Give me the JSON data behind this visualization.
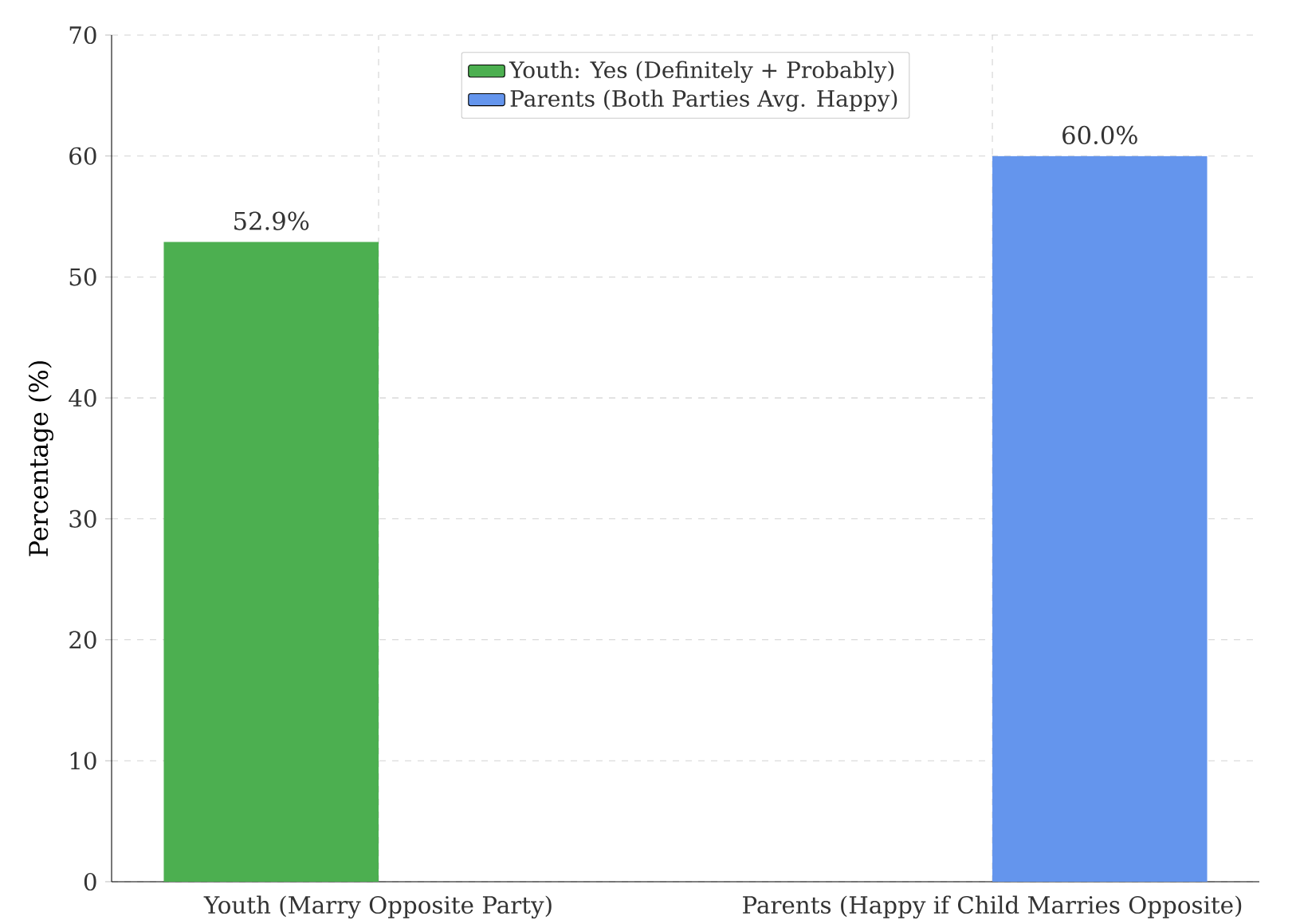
{
  "chart_data": {
    "type": "bar",
    "ylabel": "Percentage (%)",
    "categories": [
      "Youth (Marry Opposite Party)",
      "Parents (Happy if Child Marries Opposite)"
    ],
    "series": [
      {
        "name": "Youth: Yes (Definitely + Probably)",
        "color": "#4caf50",
        "values": [
          52.9,
          null
        ],
        "value_labels": [
          "52.9%",
          null
        ]
      },
      {
        "name": "Parents (Both Parties Avg. Happy)",
        "color": "#6495ed",
        "values": [
          null,
          60.0
        ],
        "value_labels": [
          null,
          "60.0%"
        ]
      }
    ],
    "ylim": [
      0,
      70
    ],
    "yticks": [
      0,
      10,
      20,
      30,
      40,
      50,
      60,
      70
    ],
    "grid": true,
    "legend": "top"
  }
}
